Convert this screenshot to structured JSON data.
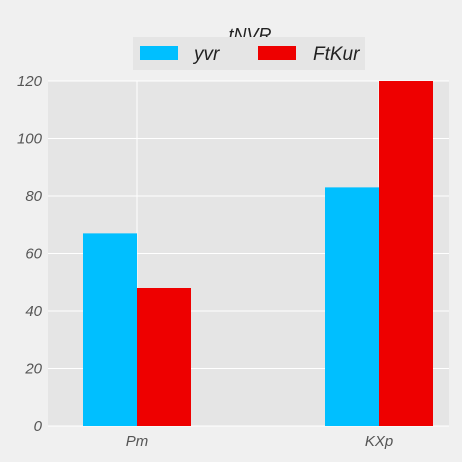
{
  "chart_data": {
    "type": "bar",
    "title": "tNVR",
    "categories": [
      "Pm",
      "KXp"
    ],
    "series": [
      {
        "name": "yvr",
        "values": [
          67,
          83
        ],
        "color": "#00bfff"
      },
      {
        "name": "FtKur",
        "values": [
          48,
          120
        ],
        "color": "#ee0000"
      }
    ],
    "xlabel": "",
    "ylabel": "",
    "ylim": [
      0,
      120
    ],
    "yticks": [
      0,
      20,
      40,
      60,
      80,
      100,
      120
    ],
    "grid": true,
    "legend_position": "top-center",
    "plot_background": "#e5e5e5",
    "grid_color": "#ffffff"
  }
}
